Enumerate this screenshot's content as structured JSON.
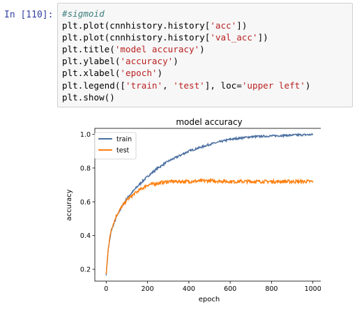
{
  "prompt": "In [110]:",
  "code_lines": [
    {
      "kind": "comment",
      "text": "#sigmoid"
    },
    {
      "kind": "code",
      "parts": [
        {
          "t": "plt.plot(cnnhistory.history["
        },
        {
          "t": "'acc'",
          "s": 1
        },
        {
          "t": "])"
        }
      ]
    },
    {
      "kind": "code",
      "parts": [
        {
          "t": "plt.plot(cnnhistory.history["
        },
        {
          "t": "'val_acc'",
          "s": 1
        },
        {
          "t": "])"
        }
      ]
    },
    {
      "kind": "code",
      "parts": [
        {
          "t": "plt.title("
        },
        {
          "t": "'model accuracy'",
          "s": 1
        },
        {
          "t": ")"
        }
      ]
    },
    {
      "kind": "code",
      "parts": [
        {
          "t": "plt.ylabel("
        },
        {
          "t": "'accuracy'",
          "s": 1
        },
        {
          "t": ")"
        }
      ]
    },
    {
      "kind": "code",
      "parts": [
        {
          "t": "plt.xlabel("
        },
        {
          "t": "'epoch'",
          "s": 1
        },
        {
          "t": ")"
        }
      ]
    },
    {
      "kind": "code",
      "parts": [
        {
          "t": "plt.legend(["
        },
        {
          "t": "'train'",
          "s": 1
        },
        {
          "t": ", "
        },
        {
          "t": "'test'",
          "s": 1
        },
        {
          "t": "], loc="
        },
        {
          "t": "'upper left'",
          "s": 1
        },
        {
          "t": ")"
        }
      ]
    },
    {
      "kind": "code",
      "parts": [
        {
          "t": "plt.show()"
        }
      ]
    }
  ],
  "chart_data": {
    "type": "line",
    "title": "model accuracy",
    "xlabel": "epoch",
    "ylabel": "accuracy",
    "xlim": [
      -55,
      1055
    ],
    "ylim": [
      0.13,
      1.035
    ],
    "xticks": [
      0,
      200,
      400,
      600,
      800,
      1000
    ],
    "yticks": [
      0.2,
      0.4,
      0.6,
      0.8,
      1.0
    ],
    "ytick_labels": [
      "0.2",
      "0.4",
      "0.6",
      "0.8",
      "1.0"
    ],
    "legend": "upper left",
    "series": [
      {
        "name": "train",
        "color": "#4a6fa0",
        "x": [
          0,
          10,
          25,
          50,
          75,
          100,
          150,
          200,
          250,
          300,
          400,
          500,
          600,
          700,
          800,
          900,
          1000
        ],
        "y": [
          0.17,
          0.32,
          0.43,
          0.51,
          0.57,
          0.62,
          0.69,
          0.75,
          0.8,
          0.84,
          0.9,
          0.94,
          0.97,
          0.985,
          0.99,
          0.995,
          0.998
        ]
      },
      {
        "name": "test",
        "color": "#ff7f0e",
        "x": [
          0,
          10,
          25,
          50,
          75,
          100,
          150,
          200,
          250,
          300,
          400,
          500,
          600,
          700,
          800,
          900,
          1000
        ],
        "y": [
          0.17,
          0.33,
          0.44,
          0.52,
          0.57,
          0.61,
          0.66,
          0.7,
          0.71,
          0.72,
          0.72,
          0.725,
          0.72,
          0.72,
          0.72,
          0.72,
          0.72
        ]
      }
    ]
  }
}
